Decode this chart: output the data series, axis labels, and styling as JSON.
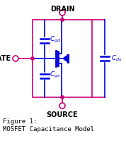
{
  "bg_color": "#ffffff",
  "box_color": "#cc0077",
  "line_color": "#cc0077",
  "mosfet_color": "#0000dd",
  "cap_color": "#0000dd",
  "text_color": "#000000",
  "drain_label": "DRAIN",
  "gate_label": "GATE",
  "source_label": "SOURCE",
  "fig1_line1": "Figure 1:",
  "fig1_line2": "MOSFET Capacitance Model",
  "figsize": [
    1.78,
    2.1
  ],
  "dpi": 100
}
